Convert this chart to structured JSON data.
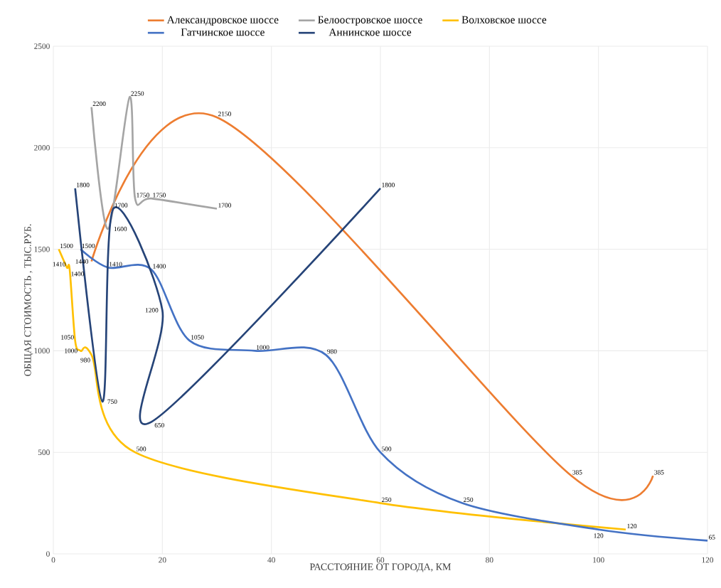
{
  "chart_data": {
    "type": "line",
    "xlabel": "РАССТОЯНИЕ ОТ ГОРОДА, КМ",
    "ylabel": "ОБЩАЯ СТОИМОСТЬ , ТЫС.РУБ.",
    "xlim": [
      0,
      120
    ],
    "xticks": [
      0,
      20,
      40,
      60,
      80,
      100,
      120
    ],
    "ylim": [
      0,
      2500
    ],
    "yticks": [
      0,
      500,
      1000,
      1500,
      2000,
      2500
    ],
    "grid": true,
    "legend": "top",
    "marker": "none",
    "line_style": "solid",
    "data_labels": true,
    "series": [
      {
        "name": "Александровское шоссе",
        "color": "#ed7d31",
        "x": [
          7,
          30,
          95,
          110
        ],
        "values": [
          1440,
          2150,
          385,
          385
        ]
      },
      {
        "name": "Белоостровское шоссе",
        "color": "#a5a5a5",
        "x": [
          7,
          10,
          14,
          15,
          18,
          30
        ],
        "values": [
          2200,
          1600,
          2250,
          1750,
          1750,
          1700
        ]
      },
      {
        "name": "Волховское шоссе",
        "color": "#ffc000",
        "x": [
          1,
          2.5,
          3,
          4,
          5,
          7,
          15,
          60,
          105
        ],
        "values": [
          1500,
          1410,
          1400,
          1050,
          1000,
          980,
          500,
          250,
          120
        ]
      },
      {
        "name": "Гатчинское шоссе",
        "color": "#4472c4",
        "x": [
          5,
          10,
          18,
          25,
          37,
          50,
          60,
          75,
          100,
          120
        ],
        "values": [
          1500,
          1410,
          1400,
          1050,
          1000,
          980,
          500,
          250,
          120,
          65
        ]
      },
      {
        "name": "Аннинское шоссе",
        "color": "#264478",
        "x": [
          4,
          9,
          11,
          20,
          18,
          60
        ],
        "values": [
          1800,
          750,
          1700,
          1200,
          650,
          1800
        ]
      }
    ]
  }
}
